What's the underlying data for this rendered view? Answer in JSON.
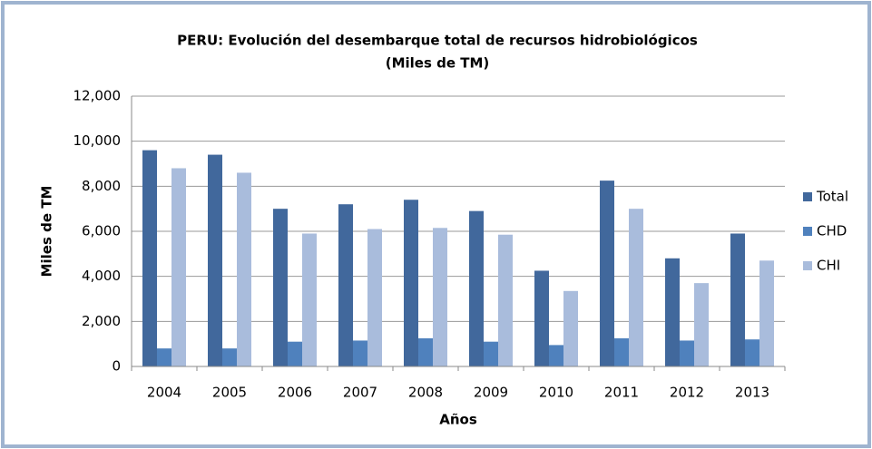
{
  "chart_data": {
    "type": "bar",
    "title": "PERU: Evolución del desembarque total de recursos hidrobiológicos",
    "subtitle": "(Miles de TM)",
    "x_label": "Años",
    "y_label": "Miles de TM",
    "categories": [
      "2004",
      "2005",
      "2006",
      "2007",
      "2008",
      "2009",
      "2010",
      "2011",
      "2012",
      "2013"
    ],
    "series": [
      {
        "name": "Total",
        "color": "#41689c",
        "values": [
          9600,
          9400,
          7000,
          7200,
          7400,
          6900,
          4250,
          8250,
          4800,
          5900
        ]
      },
      {
        "name": "CHD",
        "color": "#4f81bd",
        "values": [
          800,
          800,
          1100,
          1150,
          1250,
          1100,
          950,
          1250,
          1150,
          1200
        ]
      },
      {
        "name": "CHI",
        "color": "#a9bcdc",
        "values": [
          8800,
          8600,
          5900,
          6100,
          6150,
          5850,
          3350,
          7000,
          3700,
          4700
        ]
      }
    ],
    "ylim": [
      0,
      12000
    ],
    "yticks": [
      0,
      {
        "value": 2000,
        "label": "2,000"
      },
      {
        "value": 4000,
        "label": "4,000"
      },
      {
        "value": 6000,
        "label": "6,000"
      },
      {
        "value": 8000,
        "label": "8,000"
      },
      {
        "value": 10000,
        "label": "10,000"
      },
      {
        "value": 12000,
        "label": "12,000"
      }
    ],
    "grid": true,
    "legend": "right"
  }
}
